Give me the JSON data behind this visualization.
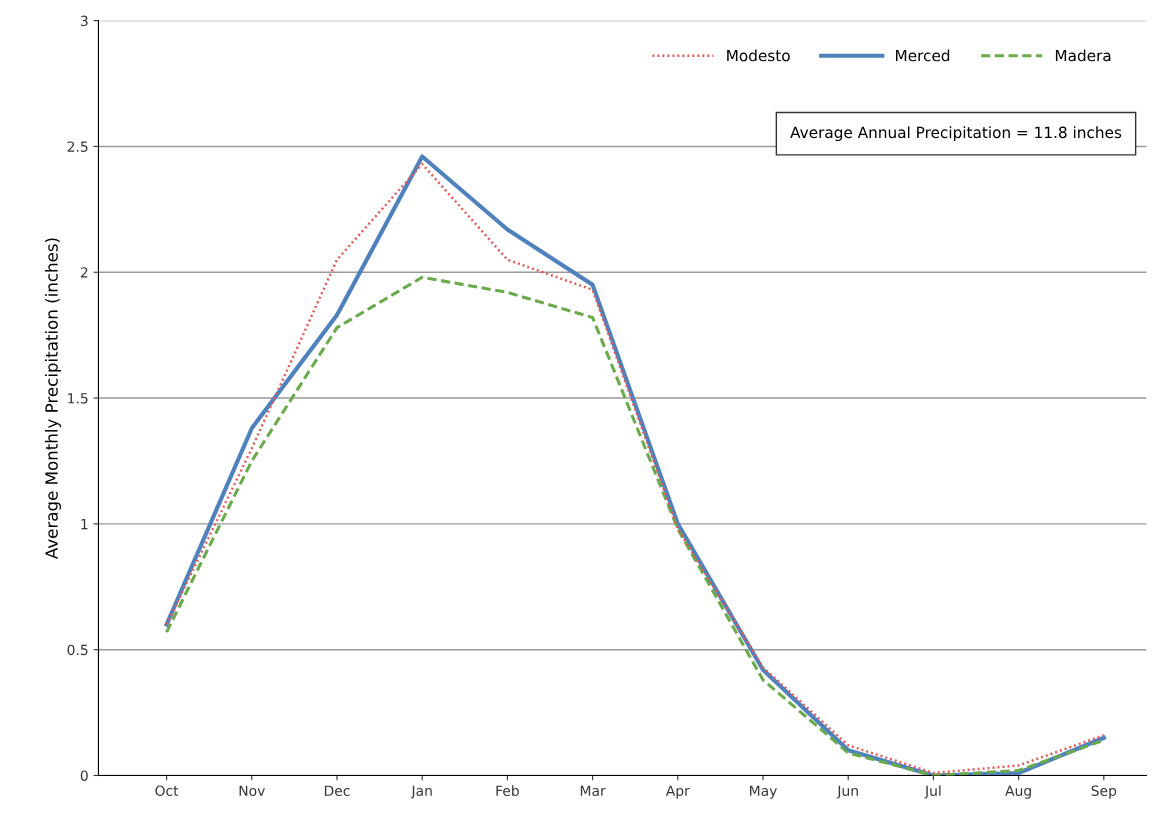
{
  "chart_data": {
    "type": "line",
    "ylabel": "Average Monthly Precipitation (inches)",
    "categories": [
      "Oct",
      "Nov",
      "Dec",
      "Jan",
      "Feb",
      "Mar",
      "Apr",
      "May",
      "Jun",
      "Jul",
      "Aug",
      "Sep"
    ],
    "series": [
      {
        "name": "Modesto",
        "color": "#e05a5a",
        "line_style": "dotted",
        "values": [
          0.6,
          1.3,
          2.05,
          2.43,
          2.05,
          1.93,
          0.98,
          0.43,
          0.12,
          0.01,
          0.04,
          0.16
        ]
      },
      {
        "name": "Merced",
        "color": "#4f81bd",
        "line_style": "solid",
        "values": [
          0.6,
          1.38,
          1.83,
          2.46,
          2.17,
          1.95,
          1.0,
          0.42,
          0.1,
          0.0,
          0.01,
          0.15
        ]
      },
      {
        "name": "Madera",
        "color": "#6aaa4a",
        "line_style": "dashed",
        "values": [
          0.57,
          1.25,
          1.78,
          1.98,
          1.92,
          1.82,
          0.98,
          0.38,
          0.09,
          0.0,
          0.02,
          0.14
        ]
      }
    ],
    "ylim": [
      0,
      3
    ],
    "yticks": [
      0,
      0.5,
      1,
      1.5,
      2,
      2.5,
      3
    ],
    "grid": "y",
    "legend": "top right",
    "annotations": [
      "Average Annual Precipitation = 11.8 inches"
    ]
  }
}
